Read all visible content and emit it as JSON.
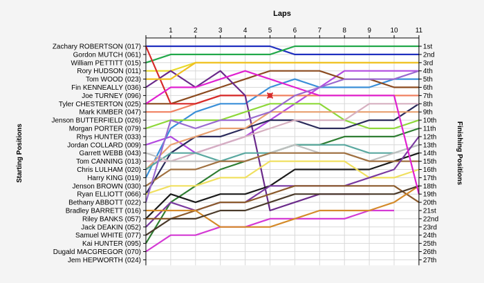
{
  "chart_data": {
    "type": "line",
    "title": "Laps",
    "ylabel_left": "Starting Positions",
    "ylabel_right": "Finishing Positions",
    "laps": [
      0,
      1,
      2,
      3,
      4,
      5,
      6,
      7,
      8,
      9,
      10,
      11
    ],
    "x_ticks": [
      "1",
      "2",
      "3",
      "4",
      "5",
      "6",
      "7",
      "8",
      "9",
      "10",
      "11"
    ],
    "grid": true,
    "starting_labels": [
      "Zachary ROBERTSON (017)",
      "Gordon MUTCH (061)",
      "William PETTITT (015)",
      "Rory HUDSON (011)",
      "Tom WOOD (023)",
      "Fin KENNEALLY (036)",
      "Joe TURNEY (096)",
      "Tyler CHESTERTON (025)",
      "Mark KIMBER (047)",
      "Jenson BUTTERFIELD (026)",
      "Morgan PORTER (079)",
      "Rhys HUNTER (033)",
      "Jordan COLLARD (009)",
      "Garrett WEBB (043)",
      "Tom CANNING (013)",
      "Chris LULHAM (020)",
      "Harry KING (019)",
      "Jenson BROWN (030)",
      "Ryan ELLIOTT (066)",
      "Bethany ABBOTT (022)",
      "Bradley BARRETT (016)",
      "Riley BANKS (057)",
      "Jack DEAKIN (052)",
      "Samuel WHITE (077)",
      "Kai HUNTER (095)",
      "Dugald MACGREGOR (070)",
      "Jem HEPWORTH (024)"
    ],
    "finishing_labels": [
      "1st",
      "2nd",
      "3rd",
      "4th",
      "5th",
      "6th",
      "7th",
      "8th",
      "9th",
      "10th",
      "11th",
      "12th",
      "13th",
      "14th",
      "15th",
      "16th",
      "17th",
      "18th",
      "19th",
      "20th",
      "21st",
      "22nd",
      "23rd",
      "24th",
      "25th",
      "26th",
      "27th"
    ],
    "series": [
      {
        "color": "#1f2fbf",
        "values": [
          1,
          1,
          1,
          1,
          1,
          1,
          2,
          2,
          2,
          2,
          2,
          2
        ]
      },
      {
        "color": "#22a84a",
        "values": [
          3,
          2,
          2,
          2,
          2,
          2,
          1,
          1,
          1,
          1,
          1,
          1
        ]
      },
      {
        "color": "#e8d92a",
        "values": [
          4,
          4,
          3,
          3,
          3,
          3,
          3,
          3,
          3,
          3,
          3,
          3
        ]
      },
      {
        "color": "#b24ae0",
        "values": [
          13,
          12,
          14,
          13,
          12,
          10,
          8,
          6,
          4,
          4,
          4,
          4
        ]
      },
      {
        "color": "#3a8fd8",
        "values": [
          17,
          11,
          9,
          8,
          8,
          6,
          5,
          6,
          6,
          6,
          5,
          5
        ]
      },
      {
        "color": "#8b4a1f",
        "values": [
          8,
          8,
          7,
          6,
          5,
          4,
          4,
          4,
          5,
          5,
          6,
          6
        ]
      },
      {
        "color": "#f08060",
        "values": [
          9,
          9,
          8,
          7,
          7,
          7,
          7,
          7,
          7,
          7,
          7,
          7
        ]
      },
      {
        "color": "#d62a2a",
        "values": [
          1,
          8,
          8,
          7,
          7
        ]
      },
      {
        "color": "#6a2a8a",
        "values": [
          6,
          4,
          6,
          4,
          7,
          21,
          20,
          19,
          19,
          19
        ]
      },
      {
        "color": "#8ed83a",
        "values": [
          11,
          10,
          10,
          10,
          9,
          8,
          8,
          8,
          10,
          11,
          11,
          10
        ]
      },
      {
        "color": "#2a2a5a",
        "values": [
          19,
          14,
          12,
          12,
          11,
          10,
          10,
          11,
          11,
          10,
          10,
          8
        ]
      },
      {
        "color": "#e8a070",
        "values": [
          16,
          13,
          12,
          11,
          11,
          9,
          9,
          9,
          9,
          9,
          9,
          9
        ]
      },
      {
        "color": "#d6b0c0",
        "values": [
          15,
          15,
          14,
          13,
          12,
          11,
          10,
          10,
          10,
          8,
          8,
          8
        ]
      },
      {
        "color": "#2e7d32",
        "values": [
          25,
          20,
          18,
          16,
          15,
          14,
          13,
          13,
          12,
          12,
          12,
          11
        ]
      },
      {
        "color": "#5aa8a0",
        "values": [
          16,
          14,
          14,
          15,
          14,
          14,
          13,
          13,
          13,
          14,
          14,
          13
        ]
      },
      {
        "color": "#c0c0c0",
        "values": [
          14,
          15,
          15,
          15,
          15,
          14,
          13,
          14,
          14,
          15,
          14,
          13
        ]
      },
      {
        "color": "#1a1a1a",
        "values": [
          22,
          19,
          20,
          19,
          19,
          18,
          16,
          16,
          16,
          16,
          15,
          14
        ]
      },
      {
        "color": "#a07040",
        "values": [
          18,
          16,
          16,
          15,
          15,
          14,
          14,
          14,
          14,
          15,
          15,
          15
        ]
      },
      {
        "color": "#f0e060",
        "values": [
          19,
          18,
          18,
          17,
          17,
          15,
          15,
          15,
          15,
          17,
          17,
          16
        ]
      },
      {
        "color": "#7a3aa0",
        "values": [
          23,
          20,
          21,
          20,
          20,
          18,
          18,
          18,
          18,
          17,
          16,
          12
        ]
      },
      {
        "color": "#d43ad4",
        "values": [
          26,
          24,
          24,
          23,
          23,
          22,
          22,
          22,
          22,
          21,
          21
        ]
      },
      {
        "color": "#8b5a2b",
        "values": [
          22,
          22,
          21,
          20,
          20,
          19,
          18,
          18,
          18,
          18,
          18,
          20
        ]
      },
      {
        "color": "#d48a2a",
        "values": [
          21,
          21,
          21,
          23,
          23,
          23,
          22,
          21,
          21,
          21,
          20,
          18
        ]
      },
      {
        "color": "#4a3a2a",
        "values": [
          24,
          22,
          22,
          21,
          21,
          20,
          19,
          19,
          19,
          19,
          19,
          18
        ]
      },
      {
        "color": "#e020d0",
        "values": [
          8,
          6,
          6,
          5,
          4,
          5,
          6,
          7,
          7,
          7,
          7,
          19
        ]
      },
      {
        "color": "#f0c020",
        "values": [
          5,
          5,
          3,
          3,
          3,
          3,
          3,
          3,
          3,
          3,
          3,
          3
        ]
      },
      {
        "color": "#9a6ad0",
        "values": [
          20,
          10,
          11,
          10,
          10,
          9,
          7,
          6,
          5,
          5,
          5,
          4
        ]
      }
    ],
    "marker": {
      "lap": 5,
      "position": 7,
      "color": "#d62a2a",
      "symbol": "x"
    }
  }
}
